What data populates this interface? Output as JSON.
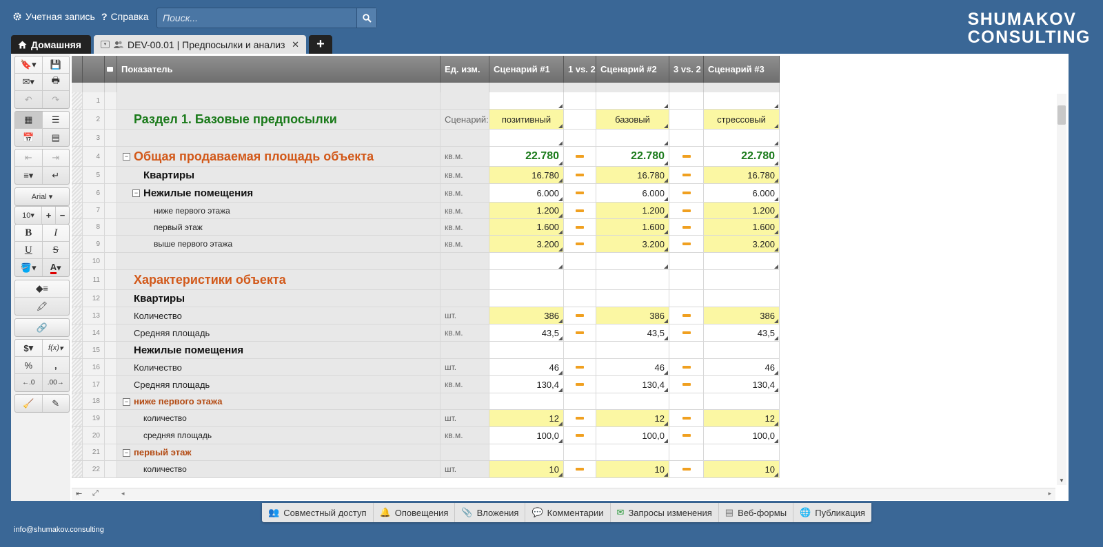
{
  "top": {
    "account_label": "Учетная запись",
    "help_label": "Справка",
    "search_placeholder": "Поиск...",
    "logo_line1": "SHUMAKOV",
    "logo_line2": "CONSULTING"
  },
  "tabs": {
    "home": "Домашняя",
    "doc": "DEV-00.01 | Предпосылки и анализ",
    "add": "+"
  },
  "toolbox": {
    "font_name": "Arial",
    "font_size": "10",
    "bold": "B",
    "italic": "I",
    "underline": "U",
    "strike": "S",
    "currency": "$",
    "function": "f(x)",
    "percent": "%",
    "comma": ",",
    "dec_minus": ".0",
    "dec_plus": ".00"
  },
  "grid": {
    "headers": {
      "indicator": "Показатель",
      "unit": "Ед. изм.",
      "s1": "Сценарий #1",
      "v12": "1 vs. 2",
      "s2": "Сценарий #2",
      "v32": "3 vs. 2",
      "s3": "Сценарий #3"
    },
    "rows": [
      {
        "n": "1",
        "label": "",
        "unit": "",
        "s1": "",
        "s2": "",
        "s3": "",
        "style": "empty",
        "h": 25
      },
      {
        "n": "2",
        "label": "Раздел 1. Базовые предпосылки",
        "unit": "Сценарий:",
        "s1": "позитивный",
        "s2": "базовый",
        "s3": "стрессовый",
        "style": "section",
        "yellow": true,
        "h": 29
      },
      {
        "n": "3",
        "label": "",
        "unit": "",
        "s1": "",
        "s2": "",
        "s3": "",
        "style": "empty",
        "h": 25
      },
      {
        "n": "4",
        "label": "Общая продаваемая площадь объекта",
        "unit": "кв.м.",
        "s1": "22.780",
        "s2": "22.780",
        "s3": "22.780",
        "style": "orangebig",
        "collapse": true,
        "dash": true,
        "big": true,
        "h": 29
      },
      {
        "n": "5",
        "label": "Квартиры",
        "unit": "кв.м.",
        "s1": "16.780",
        "s2": "16.780",
        "s3": "16.780",
        "style": "boldblack",
        "indent": 1,
        "dash": true,
        "yellow": true,
        "h": 25
      },
      {
        "n": "6",
        "label": "Нежилые помещения",
        "unit": "кв.м.",
        "s1": "6.000",
        "s2": "6.000",
        "s3": "6.000",
        "style": "boldblack",
        "indent": 1,
        "collapse": true,
        "dash": true,
        "h": 27
      },
      {
        "n": "7",
        "label": "ниже первого этажа",
        "unit": "кв.м.",
        "s1": "1.200",
        "s2": "1.200",
        "s3": "1.200",
        "style": "small",
        "indent": 2,
        "dash": true,
        "yellow": true,
        "h": 24
      },
      {
        "n": "8",
        "label": "первый этаж",
        "unit": "кв.м.",
        "s1": "1.600",
        "s2": "1.600",
        "s3": "1.600",
        "style": "small",
        "indent": 2,
        "dash": true,
        "yellow": true,
        "h": 24
      },
      {
        "n": "9",
        "label": "выше первого этажа",
        "unit": "кв.м.",
        "s1": "3.200",
        "s2": "3.200",
        "s3": "3.200",
        "style": "small",
        "indent": 2,
        "dash": true,
        "yellow": true,
        "h": 25
      },
      {
        "n": "10",
        "label": "",
        "unit": "",
        "s1": "",
        "s2": "",
        "s3": "",
        "style": "empty",
        "h": 25
      },
      {
        "n": "11",
        "label": "Характеристики объекта",
        "unit": "",
        "s1": "",
        "s2": "",
        "s3": "",
        "style": "orangebig",
        "h": 29
      },
      {
        "n": "12",
        "label": "Квартиры",
        "unit": "",
        "s1": "",
        "s2": "",
        "s3": "",
        "style": "boldblack",
        "h": 25
      },
      {
        "n": "13",
        "label": "Количество",
        "unit": "шт.",
        "s1": "386",
        "s2": "386",
        "s3": "386",
        "style": "normal",
        "dash": true,
        "yellow": true,
        "h": 25
      },
      {
        "n": "14",
        "label": "Средняя площадь",
        "unit": "кв.м.",
        "s1": "43,5",
        "s2": "43,5",
        "s3": "43,5",
        "style": "normal",
        "dash": true,
        "h": 25
      },
      {
        "n": "15",
        "label": "Нежилые помещения",
        "unit": "",
        "s1": "",
        "s2": "",
        "s3": "",
        "style": "boldblack",
        "h": 25
      },
      {
        "n": "16",
        "label": "Количество",
        "unit": "шт.",
        "s1": "46",
        "s2": "46",
        "s3": "46",
        "style": "normal",
        "dash": true,
        "h": 25
      },
      {
        "n": "17",
        "label": "Средняя площадь",
        "unit": "кв.м.",
        "s1": "130,4",
        "s2": "130,4",
        "s3": "130,4",
        "style": "normal",
        "dash": true,
        "h": 25
      },
      {
        "n": "18",
        "label": "ниже первого этажа",
        "unit": "",
        "s1": "",
        "s2": "",
        "s3": "",
        "style": "orangesmall",
        "collapse": true,
        "h": 24
      },
      {
        "n": "19",
        "label": "количество",
        "unit": "шт.",
        "s1": "12",
        "s2": "12",
        "s3": "12",
        "style": "small",
        "indent": 1,
        "dash": true,
        "yellow": true,
        "h": 25
      },
      {
        "n": "20",
        "label": "средняя площадь",
        "unit": "кв.м.",
        "s1": "100,0",
        "s2": "100,0",
        "s3": "100,0",
        "style": "small",
        "indent": 1,
        "dash": true,
        "h": 25
      },
      {
        "n": "21",
        "label": "первый этаж",
        "unit": "",
        "s1": "",
        "s2": "",
        "s3": "",
        "style": "orangesmall",
        "collapse": true,
        "h": 24
      },
      {
        "n": "22",
        "label": "количество",
        "unit": "шт.",
        "s1": "10",
        "s2": "10",
        "s3": "10",
        "style": "small",
        "indent": 1,
        "dash": true,
        "yellow": true,
        "h": 25
      }
    ]
  },
  "bottom_buttons": [
    "Совместный доступ",
    "Оповещения",
    "Вложения",
    "Комментарии",
    "Запросы изменения",
    "Веб-формы",
    "Публикация"
  ],
  "footer": "info@shumakov.consulting",
  "colors": {
    "accent_blue": "#3a6796",
    "highlight_yellow": "#fbf7a3",
    "section_green": "#1a7a1a",
    "section_orange": "#d2591a",
    "dash_orange": "#f0a020"
  }
}
